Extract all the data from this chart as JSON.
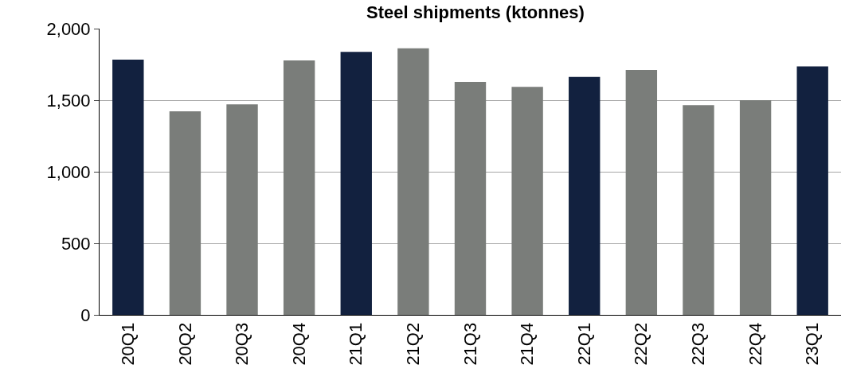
{
  "chart_data": {
    "type": "bar",
    "title": "Steel shipments (ktonnes)",
    "categories": [
      "20Q1",
      "20Q2",
      "20Q3",
      "20Q4",
      "21Q1",
      "21Q2",
      "21Q3",
      "21Q4",
      "22Q1",
      "22Q2",
      "22Q3",
      "22Q4",
      "23Q1"
    ],
    "values": [
      1784,
      1422,
      1471,
      1778,
      1838,
      1862,
      1628,
      1593,
      1663,
      1711,
      1465,
      1500,
      1736
    ],
    "colors": [
      "#12213f",
      "#7a7d7a",
      "#7a7d7a",
      "#7a7d7a",
      "#12213f",
      "#7a7d7a",
      "#7a7d7a",
      "#7a7d7a",
      "#12213f",
      "#7a7d7a",
      "#7a7d7a",
      "#7a7d7a",
      "#12213f"
    ],
    "ylim": [
      0,
      2000
    ],
    "yticks": [
      0,
      {
        "value": 500,
        "label": "500"
      },
      {
        "value": 1000,
        "label": "1,000"
      },
      {
        "value": 1500,
        "label": "1,500"
      },
      {
        "value": 2000,
        "label": "2,000"
      }
    ],
    "grid": "y"
  }
}
